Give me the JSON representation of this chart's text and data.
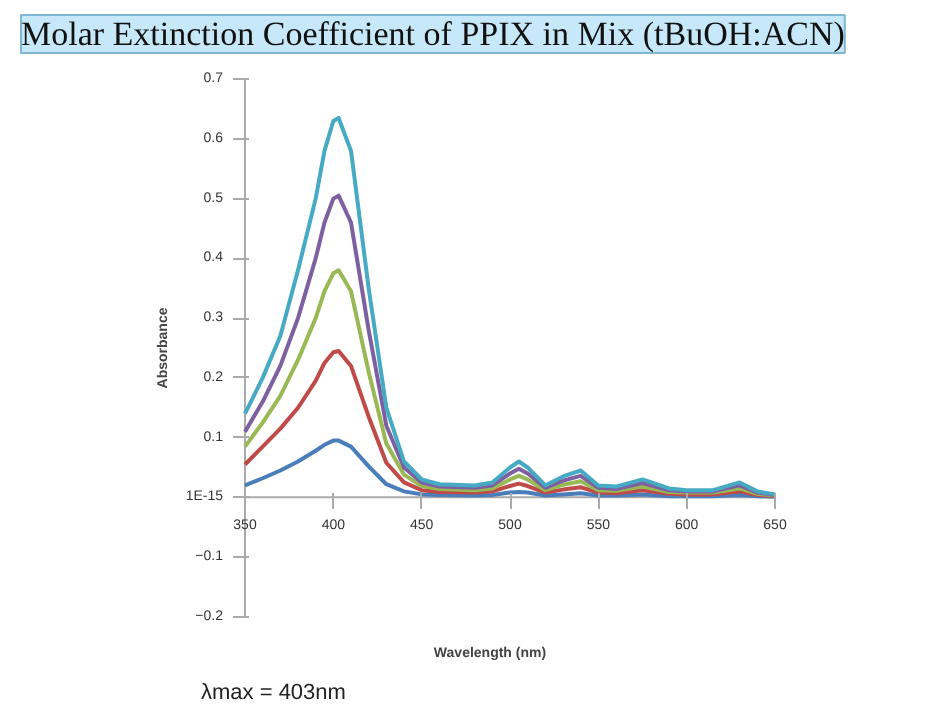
{
  "chart_data": {
    "type": "line",
    "title": "Molar Extinction Coefficient of PPIX in Mix (tBuOH:ACN)",
    "xlabel": "Wavelength (nm)",
    "ylabel": "Absorbance",
    "annotations": [
      "λmax = 403nm"
    ],
    "x": [
      350,
      360,
      370,
      380,
      390,
      395,
      400,
      403,
      410,
      420,
      430,
      440,
      450,
      460,
      480,
      490,
      500,
      505,
      510,
      520,
      530,
      540,
      550,
      560,
      575,
      590,
      600,
      615,
      630,
      640,
      650
    ],
    "series": [
      {
        "color": "#4a7ebb",
        "values": [
          0.02,
          0.032,
          0.045,
          0.06,
          0.078,
          0.088,
          0.095,
          0.095,
          0.085,
          0.052,
          0.022,
          0.01,
          0.005,
          0.004,
          0.003,
          0.004,
          0.008,
          0.009,
          0.008,
          0.003,
          0.005,
          0.007,
          0.003,
          0.003,
          0.005,
          0.002,
          0.002,
          0.002,
          0.004,
          0.002,
          0.001
        ]
      },
      {
        "color": "#be4b48",
        "values": [
          0.055,
          0.085,
          0.115,
          0.15,
          0.195,
          0.225,
          0.243,
          0.245,
          0.22,
          0.135,
          0.058,
          0.025,
          0.012,
          0.009,
          0.008,
          0.01,
          0.019,
          0.023,
          0.019,
          0.008,
          0.013,
          0.017,
          0.008,
          0.007,
          0.012,
          0.006,
          0.005,
          0.005,
          0.01,
          0.004,
          0.002
        ]
      },
      {
        "color": "#98b954",
        "values": [
          0.085,
          0.125,
          0.17,
          0.23,
          0.3,
          0.345,
          0.375,
          0.38,
          0.345,
          0.21,
          0.09,
          0.038,
          0.019,
          0.014,
          0.012,
          0.015,
          0.03,
          0.036,
          0.03,
          0.012,
          0.021,
          0.027,
          0.012,
          0.011,
          0.018,
          0.009,
          0.008,
          0.008,
          0.015,
          0.006,
          0.003
        ]
      },
      {
        "color": "#7d60a0",
        "values": [
          0.11,
          0.16,
          0.22,
          0.3,
          0.4,
          0.46,
          0.5,
          0.505,
          0.46,
          0.28,
          0.12,
          0.05,
          0.025,
          0.018,
          0.016,
          0.02,
          0.04,
          0.048,
          0.04,
          0.016,
          0.028,
          0.036,
          0.016,
          0.014,
          0.024,
          0.012,
          0.01,
          0.01,
          0.02,
          0.008,
          0.004
        ]
      },
      {
        "color": "#46aac5",
        "values": [
          0.14,
          0.2,
          0.27,
          0.38,
          0.5,
          0.58,
          0.63,
          0.635,
          0.58,
          0.35,
          0.15,
          0.06,
          0.03,
          0.022,
          0.02,
          0.025,
          0.05,
          0.06,
          0.05,
          0.02,
          0.035,
          0.045,
          0.02,
          0.018,
          0.03,
          0.015,
          0.012,
          0.012,
          0.025,
          0.01,
          0.005
        ]
      }
    ],
    "xlim": [
      350,
      650
    ],
    "xticks": [
      350,
      400,
      450,
      500,
      550,
      600,
      650
    ],
    "ylim": [
      -0.2,
      0.7
    ],
    "yticks": [
      -0.2,
      -0.1,
      {
        "value": 0,
        "label": "1E-15"
      },
      0.1,
      0.2,
      0.3,
      0.4,
      0.5,
      0.6,
      0.7
    ],
    "grid": false
  }
}
